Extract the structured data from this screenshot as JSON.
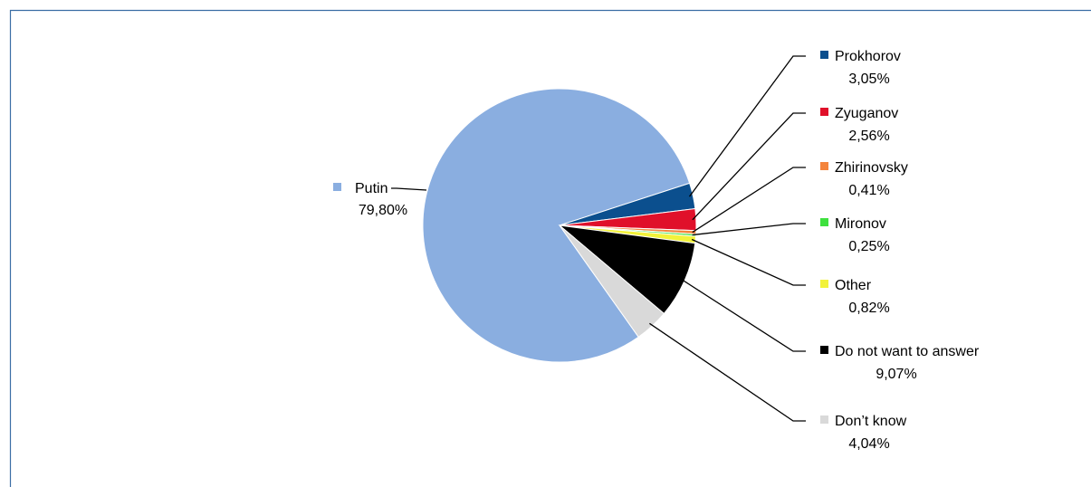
{
  "chart_data": {
    "type": "pie",
    "title": "",
    "slices": [
      {
        "label": "Putin",
        "value": 79.8,
        "display": "79,80%",
        "color": "#8aaee0"
      },
      {
        "label": "Prokhorov",
        "value": 3.05,
        "display": "3,05%",
        "color": "#0b4f8e"
      },
      {
        "label": "Zyuganov",
        "value": 2.56,
        "display": "2,56%",
        "color": "#e0102a"
      },
      {
        "label": "Zhirinovsky",
        "value": 0.41,
        "display": "0,41%",
        "color": "#f4843c"
      },
      {
        "label": "Mironov",
        "value": 0.25,
        "display": "0,25%",
        "color": "#3ee03e"
      },
      {
        "label": "Other",
        "value": 0.82,
        "display": "0,82%",
        "color": "#f2f23a"
      },
      {
        "label": "Do not want to answer",
        "value": 9.07,
        "display": "9,07%",
        "color": "#000000"
      },
      {
        "label": "Don’t know",
        "value": 4.04,
        "display": "4,04%",
        "color": "#d9d9d9"
      }
    ],
    "legend": "callouts"
  },
  "colors": {
    "frame_border": "#3b6ea5",
    "leader": "#000000"
  }
}
